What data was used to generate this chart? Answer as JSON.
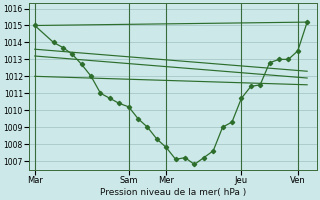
{
  "background_color": "#cce8e8",
  "grid_color": "#a8c8c8",
  "line_color": "#2d6e2d",
  "marker_color": "#2d6e2d",
  "x_tick_labels": [
    "Mar",
    "Sam",
    "Mer",
    "Jeu",
    "Ven"
  ],
  "x_tick_positions": [
    0,
    5,
    7,
    11,
    14
  ],
  "xlabel": "Pression niveau de la mer( hPa )",
  "ylim": [
    1006.5,
    1016.3
  ],
  "yticks": [
    1007,
    1008,
    1009,
    1010,
    1011,
    1012,
    1013,
    1014,
    1015,
    1016
  ],
  "vlines_x": [
    0,
    5,
    7,
    11,
    14
  ],
  "series": {
    "actual": {
      "x": [
        0,
        1,
        1.5,
        2,
        2.5,
        3,
        3.5,
        4,
        4.5,
        5,
        5.5,
        6,
        6.5,
        7,
        7.5,
        8,
        8.5,
        9,
        9.5,
        10,
        10.5,
        11,
        11.5,
        12,
        12.5,
        13,
        13.5,
        14,
        14.5
      ],
      "y": [
        1015.0,
        1014.0,
        1013.7,
        1013.3,
        1012.7,
        1012.0,
        1011.0,
        1010.7,
        1010.4,
        1010.2,
        1009.5,
        1009.0,
        1008.3,
        1007.8,
        1007.1,
        1007.2,
        1006.8,
        1007.2,
        1007.6,
        1009.0,
        1009.3,
        1010.7,
        1011.4,
        1011.5,
        1012.8,
        1013.0,
        1013.0,
        1013.5,
        1015.2
      ]
    },
    "trend_up": {
      "x": [
        0,
        14.5
      ],
      "y": [
        1015.0,
        1015.2
      ]
    },
    "trend_mid1": {
      "x": [
        0,
        14.5
      ],
      "y": [
        1013.6,
        1012.3
      ]
    },
    "trend_mid2": {
      "x": [
        0,
        14.5
      ],
      "y": [
        1013.2,
        1011.9
      ]
    },
    "trend_mid3": {
      "x": [
        0,
        14.5
      ],
      "y": [
        1012.0,
        1011.5
      ]
    }
  }
}
